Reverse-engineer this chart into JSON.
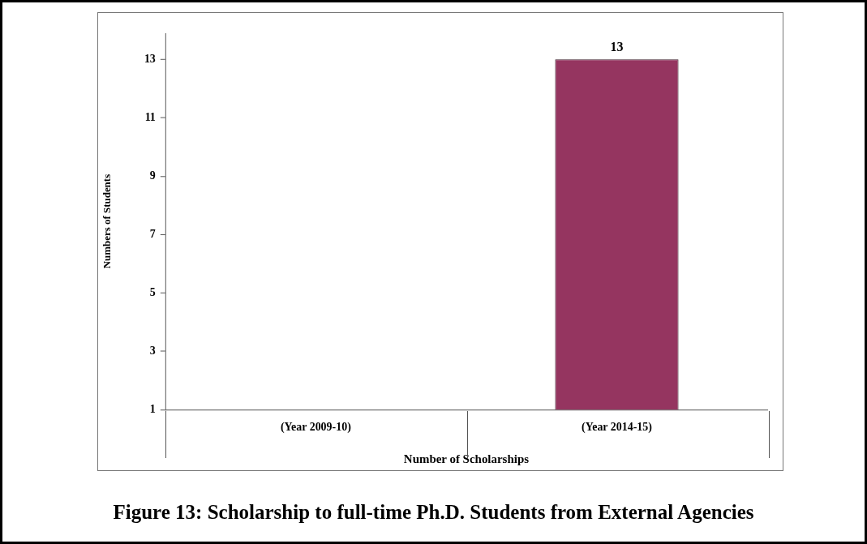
{
  "chart_data": {
    "type": "bar",
    "title": "Figure 13: Scholarship to full-time Ph.D. Students from External Agencies",
    "xlabel": "Number of Scholarships",
    "ylabel": "Numbers of Students",
    "categories": [
      "(Year 2009-10)",
      "(Year 2014-15)"
    ],
    "values": [
      null,
      13
    ],
    "color": "#953560",
    "ylim": [
      1,
      13.9
    ],
    "yticks": [
      1,
      3,
      5,
      7,
      9,
      11,
      13
    ],
    "grid": false,
    "legend": false,
    "data_labels": true
  }
}
